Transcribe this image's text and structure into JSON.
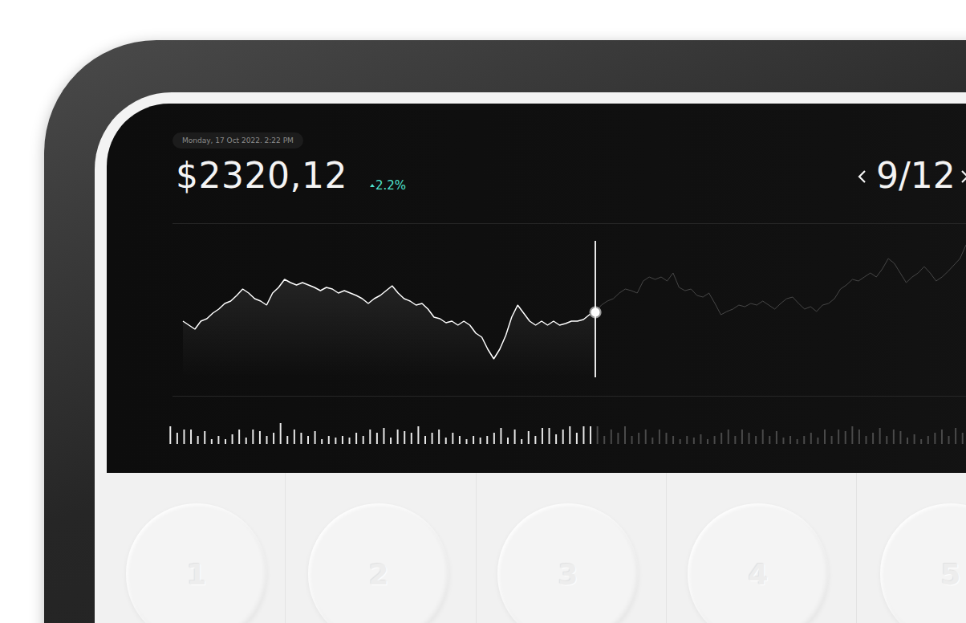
{
  "screen": {
    "timestamp": "Monday, 17 Oct 2022. 2:22 PM",
    "price": "$2320,12",
    "change": "2.2%",
    "page": "9/12"
  },
  "chart_data": [
    {
      "type": "line",
      "color": "#ffffff",
      "grid": false,
      "tick_labels": false,
      "xlim": [
        0,
        131
      ],
      "ylim": [
        0,
        170
      ],
      "cursor_index": 69,
      "values": [
        70,
        65,
        60,
        70,
        73,
        80,
        85,
        92,
        95,
        102,
        110,
        105,
        98,
        95,
        90,
        105,
        112,
        122,
        118,
        115,
        118,
        115,
        112,
        108,
        112,
        110,
        105,
        108,
        105,
        102,
        98,
        92,
        98,
        102,
        108,
        114,
        105,
        98,
        95,
        90,
        92,
        85,
        75,
        73,
        68,
        70,
        65,
        70,
        65,
        55,
        50,
        35,
        23,
        35,
        52,
        75,
        90,
        80,
        70,
        65,
        70,
        65,
        70,
        65,
        67,
        70,
        70,
        72,
        78,
        81,
        90,
        95,
        98,
        105,
        110,
        108,
        105,
        120,
        125,
        122,
        125,
        120,
        130,
        112,
        108,
        110,
        102,
        100,
        105,
        92,
        78,
        82,
        85,
        90,
        88,
        92,
        90,
        95,
        90,
        85,
        92,
        98,
        100,
        92,
        85,
        88,
        82,
        90,
        92,
        98,
        110,
        115,
        122,
        120,
        125,
        130,
        125,
        135,
        148,
        142,
        130,
        118,
        125,
        130,
        138,
        130,
        120,
        125,
        132,
        140,
        148,
        165
      ]
    },
    {
      "type": "bar",
      "color": "#e8e8e8",
      "grid": false,
      "tick_labels": false,
      "ylim": [
        0,
        26
      ],
      "cursor_index": 61,
      "values": [
        22,
        14,
        18,
        18,
        10,
        16,
        6,
        10,
        6,
        12,
        18,
        8,
        18,
        16,
        10,
        14,
        26,
        10,
        18,
        14,
        10,
        16,
        6,
        10,
        8,
        10,
        8,
        14,
        10,
        18,
        14,
        20,
        8,
        18,
        16,
        14,
        22,
        10,
        14,
        18,
        8,
        14,
        10,
        6,
        10,
        8,
        10,
        14,
        20,
        8,
        18,
        6,
        16,
        10,
        20,
        20,
        12,
        18,
        22,
        14,
        22,
        22,
        22,
        10,
        18,
        14,
        22,
        10,
        14,
        18,
        8,
        18,
        14,
        10,
        6,
        10,
        8,
        12,
        6,
        10,
        14,
        18,
        10,
        18,
        14,
        10,
        18,
        10,
        16,
        8,
        10,
        6,
        10,
        14,
        8,
        18,
        10,
        18,
        16,
        22,
        18,
        10,
        14,
        20,
        10,
        18,
        16,
        8,
        12,
        6,
        10,
        14,
        18,
        10,
        20,
        14
      ]
    }
  ],
  "keypad": {
    "keys": [
      "1",
      "2",
      "3",
      "4",
      "5"
    ]
  }
}
